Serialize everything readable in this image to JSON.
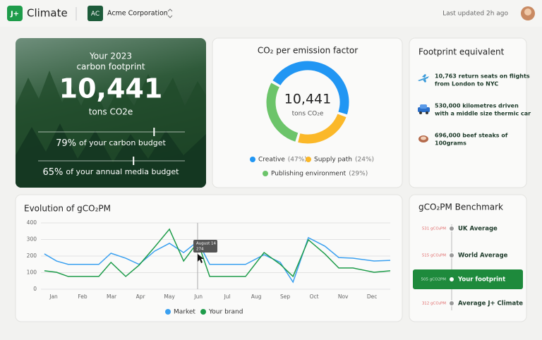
{
  "header": {
    "logo": "J+",
    "app": "Climate",
    "org_badge": "AC",
    "org": "Acme Corporation",
    "updated": "Last updated 2h ago"
  },
  "hero": {
    "line1": "Your 2023",
    "line2": "carbon footprint",
    "total": "10,441",
    "unit": "tons CO2e",
    "budgets": [
      {
        "value": 79,
        "label": "79%",
        "text": "of your carbon budget"
      },
      {
        "value": 65,
        "label": "65%",
        "text": "of your annual media budget"
      }
    ]
  },
  "donut": {
    "title": "CO₂ per emission factor",
    "total": "10,441",
    "unit": "tons CO₂e",
    "items": [
      {
        "name": "Creative",
        "value": 47,
        "value_label": "(47%)",
        "color": "#2196f3"
      },
      {
        "name": "Supply path",
        "value": 24,
        "value_label": "(24%)",
        "color": "#fbb829"
      },
      {
        "name": "Publishing environment",
        "value": 29,
        "value_label": "(29%)",
        "color": "#6cc46a"
      }
    ]
  },
  "equivalents": {
    "title": "Footprint equivalent",
    "items": [
      [
        "10,763 return seats on flights",
        "from London to NYC"
      ],
      [
        "530,000 kilometres driven",
        "with a middle size thermic car"
      ],
      [
        "696,000 beef steaks of",
        "100grams"
      ]
    ]
  },
  "evolution": {
    "title": "Evolution of gCO₂PM",
    "categories": [
      "Jan",
      "Feb",
      "Mar",
      "Apr",
      "May",
      "Jun",
      "Jul",
      "Aug",
      "Sep",
      "Oct",
      "Nov",
      "Dec"
    ],
    "x": [
      -0.32,
      0.1,
      0.5,
      1.56,
      1.98,
      2.49,
      2.95,
      3.49,
      4,
      4.49,
      4.98,
      5.39,
      6.63,
      7.27,
      7.83,
      8.27,
      8.8,
      9.37,
      9.85,
      10.34,
      11.07,
      11.63
    ],
    "xlim": [
      -0.44,
      11.63
    ],
    "ylim": [
      0,
      400
    ],
    "yticks": [
      0,
      100,
      200,
      300,
      400
    ],
    "series": [
      {
        "name": "Market",
        "color": "#3aa0f0",
        "values": [
          213,
          170,
          150,
          150,
          217,
          187,
          150,
          230,
          277,
          221,
          289,
          150,
          150,
          208,
          162,
          43,
          311,
          260,
          191,
          187,
          170,
          174
        ]
      },
      {
        "name": "Your brand",
        "color": "#1e9c4a",
        "values": [
          111,
          102,
          77,
          77,
          162,
          77,
          145,
          255,
          362,
          170,
          285,
          77,
          77,
          221,
          150,
          77,
          298,
          213,
          128,
          128,
          102,
          111
        ]
      }
    ],
    "tooltip": {
      "date": "August 14",
      "value": 274
    }
  },
  "benchmark": {
    "title": "gCO₂PM Benchmark",
    "items": [
      {
        "value": 531,
        "label": "531 gCO₂PM",
        "name": "UK Average"
      },
      {
        "value": 515,
        "label": "515 gCO₂PM",
        "name": "World Average"
      },
      {
        "value": 505,
        "label": "505 gCO2PM",
        "name": "Your footprint"
      },
      {
        "value": 312,
        "label": "312 gCO₂PM",
        "name": "Average J+ Climate"
      }
    ]
  }
}
